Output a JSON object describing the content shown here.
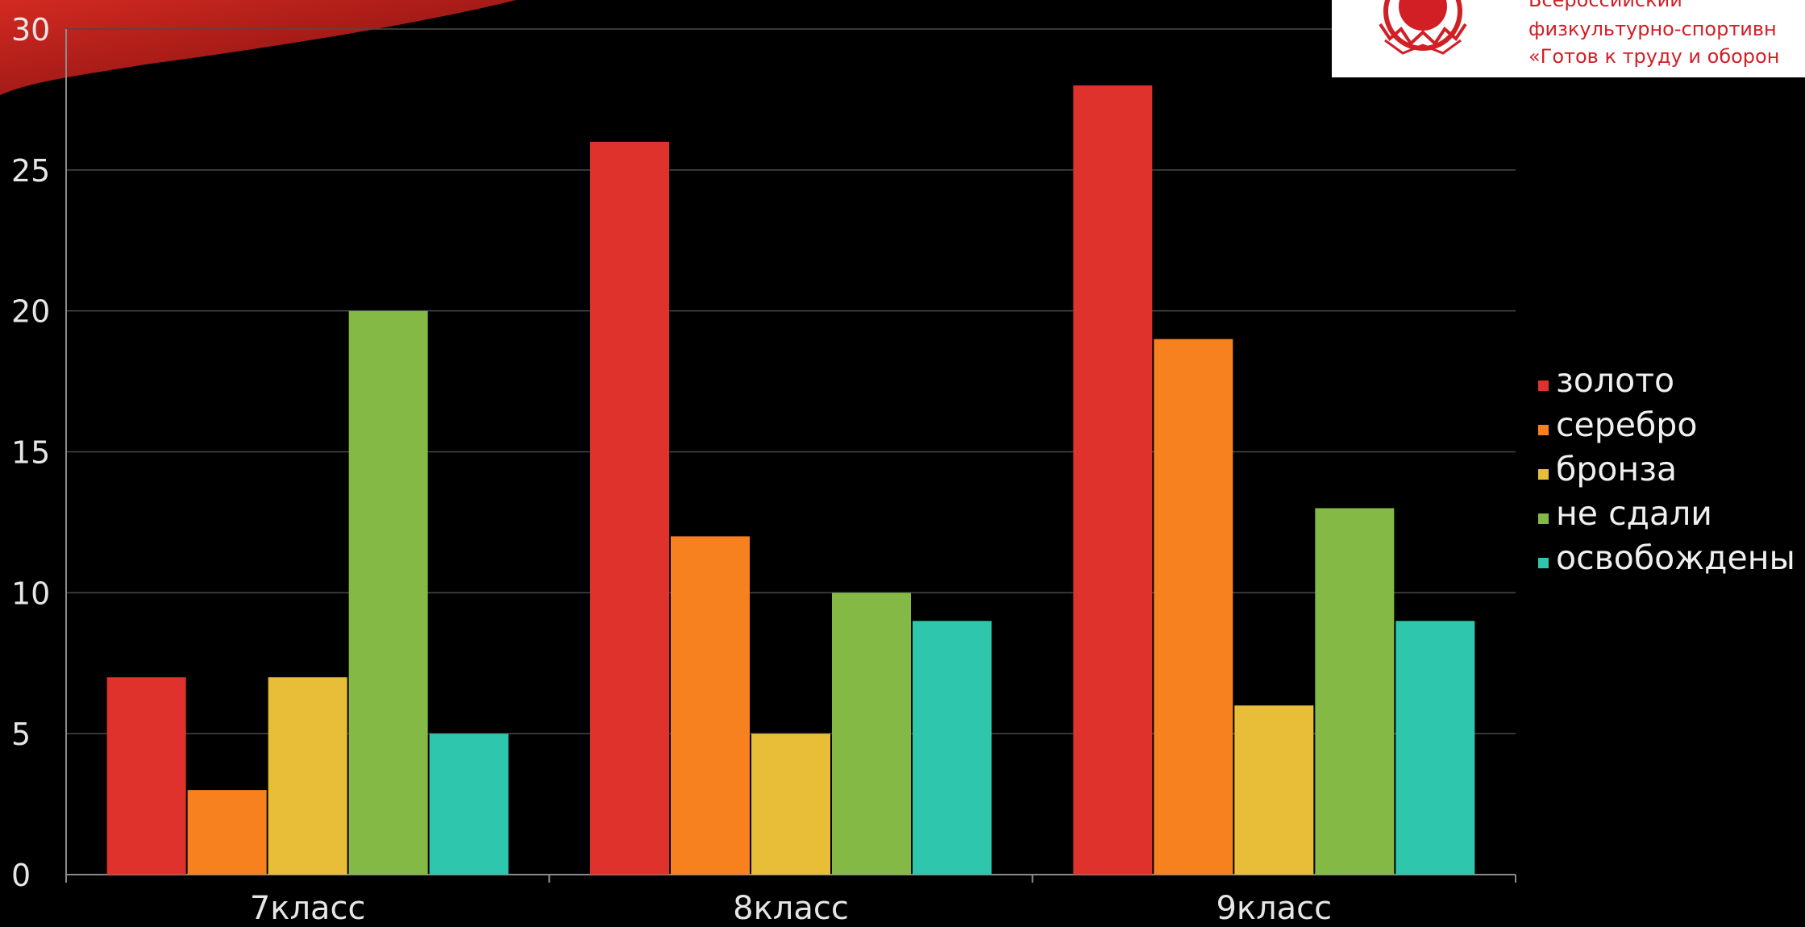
{
  "chart_data": {
    "type": "bar",
    "categories": [
      "7класс",
      "8класс",
      "9класс"
    ],
    "series": [
      {
        "name": "золото",
        "color": "#e0322d",
        "values": [
          7,
          26,
          28
        ]
      },
      {
        "name": "серебро",
        "color": "#f7811f",
        "values": [
          3,
          12,
          19
        ]
      },
      {
        "name": "бронза",
        "color": "#e8be39",
        "values": [
          7,
          5,
          6
        ]
      },
      {
        "name": "не сдали",
        "color": "#83b944",
        "values": [
          20,
          10,
          13
        ]
      },
      {
        "name": "освобождены",
        "color": "#2ec6ac",
        "values": [
          5,
          9,
          9
        ]
      }
    ],
    "ylim": [
      0,
      30
    ],
    "yticks": [
      0,
      5,
      10,
      15,
      20,
      25,
      30
    ],
    "grid": true,
    "legend_position": "right"
  },
  "logo": {
    "name": "gto-emblem-icon",
    "lines": [
      "Всероссийский",
      "физкультурно-спортивн",
      "«Готов к труду и оборон"
    ]
  }
}
